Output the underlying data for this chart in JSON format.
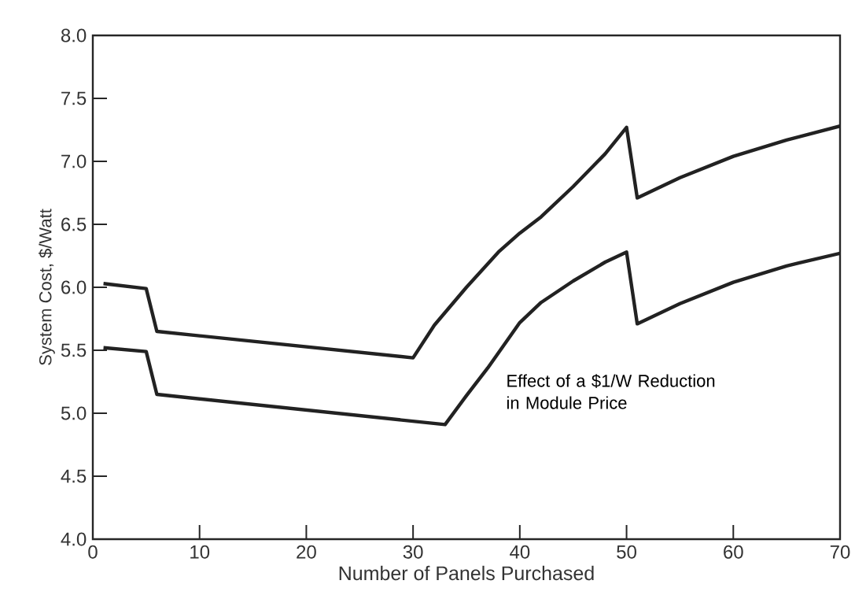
{
  "chart_data": {
    "type": "line",
    "xlabel": "Number of Panels Purchased",
    "ylabel": "System Cost, $/Watt",
    "annotations": [
      "Effect of a $1/W Reduction in Module Price"
    ],
    "series": [
      {
        "color": "#222222",
        "x": [
          1,
          5,
          6,
          30,
          32,
          35,
          38,
          40,
          42,
          45,
          48,
          50,
          51,
          55,
          60,
          65,
          70
        ],
        "values": [
          6.03,
          5.99,
          5.65,
          5.44,
          5.7,
          6.0,
          6.28,
          6.43,
          6.56,
          6.8,
          7.06,
          7.27,
          6.71,
          6.87,
          7.04,
          7.17,
          7.28
        ]
      },
      {
        "color": "#222222",
        "x": [
          1,
          5,
          6,
          33,
          35,
          37,
          40,
          42,
          45,
          48,
          50,
          51,
          55,
          60,
          65,
          70
        ],
        "values": [
          5.52,
          5.49,
          5.15,
          4.91,
          5.14,
          5.36,
          5.72,
          5.88,
          6.05,
          6.2,
          6.28,
          5.71,
          5.87,
          6.04,
          6.17,
          6.27
        ]
      }
    ],
    "xlim": [
      0,
      70
    ],
    "xticks": [
      0,
      10,
      20,
      30,
      40,
      50,
      60,
      70
    ],
    "ylim": [
      4.0,
      8.0
    ],
    "yticks": [
      {
        "value": 4.0,
        "label": "4.0"
      },
      {
        "value": 4.5,
        "label": "4.5"
      },
      {
        "value": 5.0,
        "label": "5.0"
      },
      {
        "value": 5.5,
        "label": "5.5"
      },
      {
        "value": 6.0,
        "label": "6.0"
      },
      {
        "value": 6.5,
        "label": "6.5"
      },
      {
        "value": 7.0,
        "label": "7.0"
      },
      {
        "value": 7.5,
        "label": "7.5"
      },
      {
        "value": 8.0,
        "label": "8.0"
      }
    ],
    "grid": false,
    "marker": "none",
    "line_style": "solid"
  }
}
